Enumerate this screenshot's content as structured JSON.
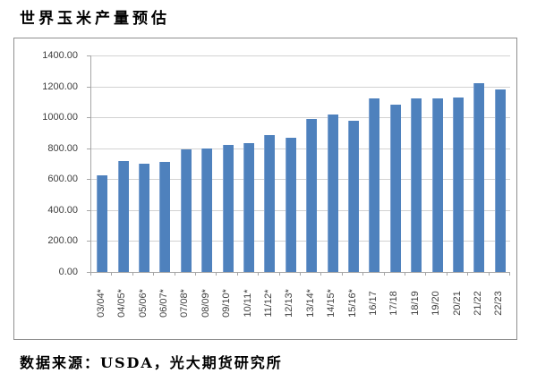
{
  "title": "世界玉米产量预估",
  "source": "数据来源：USDA，光大期货研究所",
  "colors": {
    "bar": "#4E81BD",
    "bar_edge": "#7FA3D1",
    "gridline": "#D2D2D2",
    "axis": "#A6A6A6",
    "frame_border": "#8F8F8F",
    "tick_text": "#3F3F3F"
  },
  "chart_data": {
    "type": "bar",
    "title": "世界玉米产量预估",
    "xlabel": "",
    "ylabel": "",
    "categories": [
      "03/04*",
      "04/05*",
      "05/06*",
      "06/07*",
      "07/08*",
      "08/09*",
      "09/10*",
      "10/11*",
      "11/12*",
      "12/13*",
      "13/14*",
      "14/15*",
      "15/16*",
      "16/17",
      "17/18",
      "18/19",
      "19/20",
      "20/21",
      "21/22",
      "22/23"
    ],
    "values": [
      625,
      715,
      700,
      713,
      795,
      800,
      822,
      833,
      885,
      870,
      990,
      1020,
      975,
      1125,
      1080,
      1125,
      1120,
      1128,
      1218,
      1183
    ],
    "ylim": [
      0,
      1400
    ],
    "ytick_step": 200,
    "ytick_labels": [
      "0.00",
      "200.00",
      "400.00",
      "600.00",
      "800.00",
      "1000.00",
      "1200.00",
      "1400.00"
    ],
    "grid": true,
    "legend_position": "none",
    "annotation": "数据来源：USDA，光大期货研究所"
  }
}
